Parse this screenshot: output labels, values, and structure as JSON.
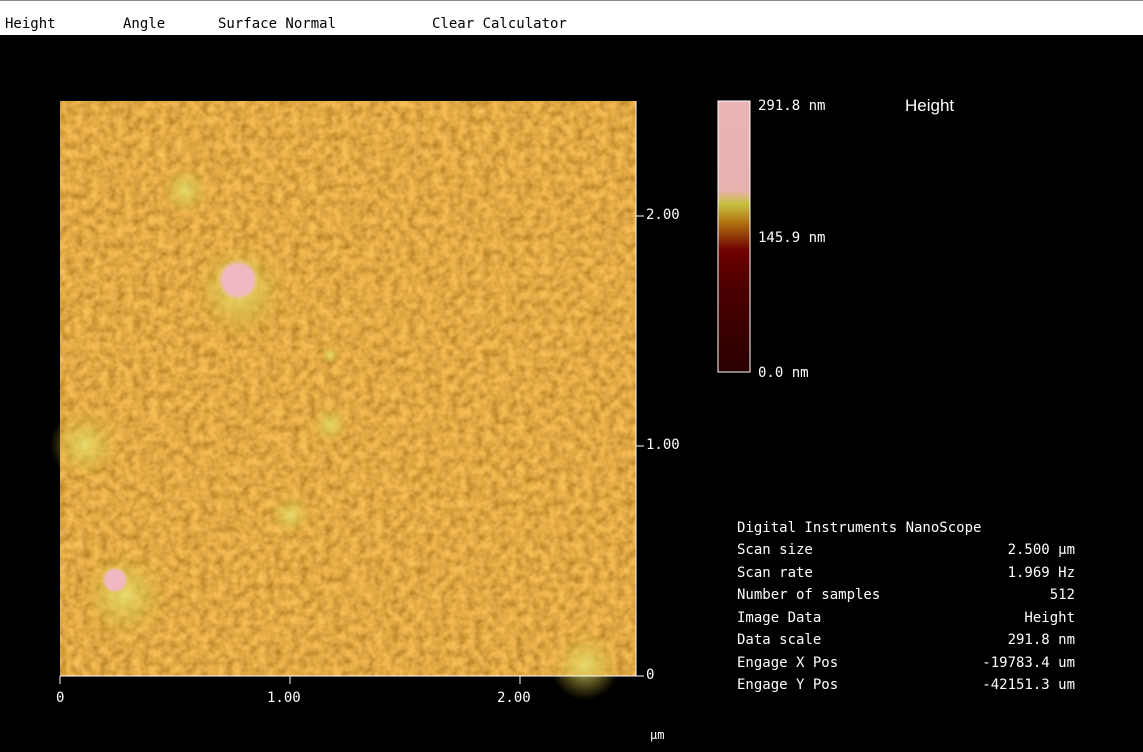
{
  "menu": [
    "Height",
    "Angle",
    "Surface Normal",
    "Clear Calculator"
  ],
  "image": {
    "y_ticks": [
      "2.00",
      "1.00",
      "0"
    ],
    "x_ticks": [
      "0",
      "1.00",
      "2.00"
    ],
    "x_unit": "µm"
  },
  "color_scale": {
    "max": "291.8 nm",
    "mid": "145.9 nm",
    "min": "0.0 nm",
    "title": "Height"
  },
  "info": {
    "header": "Digital Instruments NanoScope",
    "rows": [
      [
        "Scan size",
        "2.500 µm"
      ],
      [
        "Scan rate",
        "1.969 Hz"
      ],
      [
        "Number of samples",
        "512"
      ],
      [
        "Image Data",
        "Height"
      ],
      [
        "Data scale",
        "291.8 nm"
      ],
      [
        "Engage X Pos",
        "-19783.4 um"
      ],
      [
        "Engage Y Pos",
        "-42151.3 um"
      ]
    ]
  }
}
